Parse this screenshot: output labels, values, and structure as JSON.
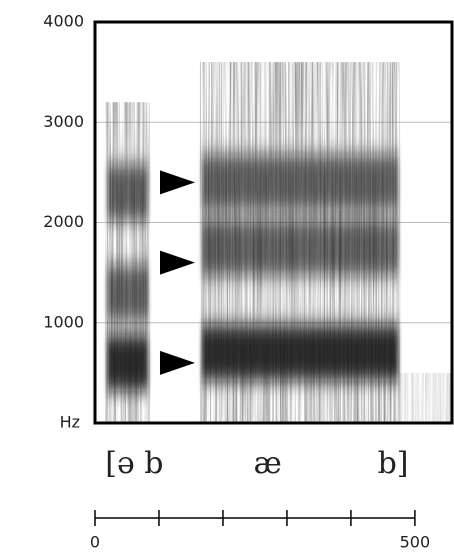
{
  "chart_data": {
    "type": "spectrogram",
    "y_label": "Hz",
    "ylim": [
      0,
      4000
    ],
    "yticks": [
      1000,
      2000,
      3000,
      4000
    ],
    "xlim": [
      0,
      558
    ],
    "xticks": [
      0,
      {
        "value": 100,
        "label": null
      },
      {
        "value": 200,
        "label": null
      },
      {
        "value": 300,
        "label": null
      },
      {
        "value": 400,
        "label": null
      },
      500
    ],
    "segments": [
      {
        "start": 16,
        "end": 86,
        "top": 3200,
        "formants": [
          600,
          1300,
          2300
        ]
      },
      {
        "start": 164,
        "end": 477,
        "top": 3600,
        "formants": [
          700,
          1750,
          2400
        ]
      }
    ],
    "arrows": [
      2400,
      1600,
      600
    ],
    "phones": [
      {
        "label": "[ə b",
        "time": 16
      },
      {
        "label": "æ",
        "time": 270
      },
      {
        "label": "b]",
        "time": 490
      }
    ]
  }
}
